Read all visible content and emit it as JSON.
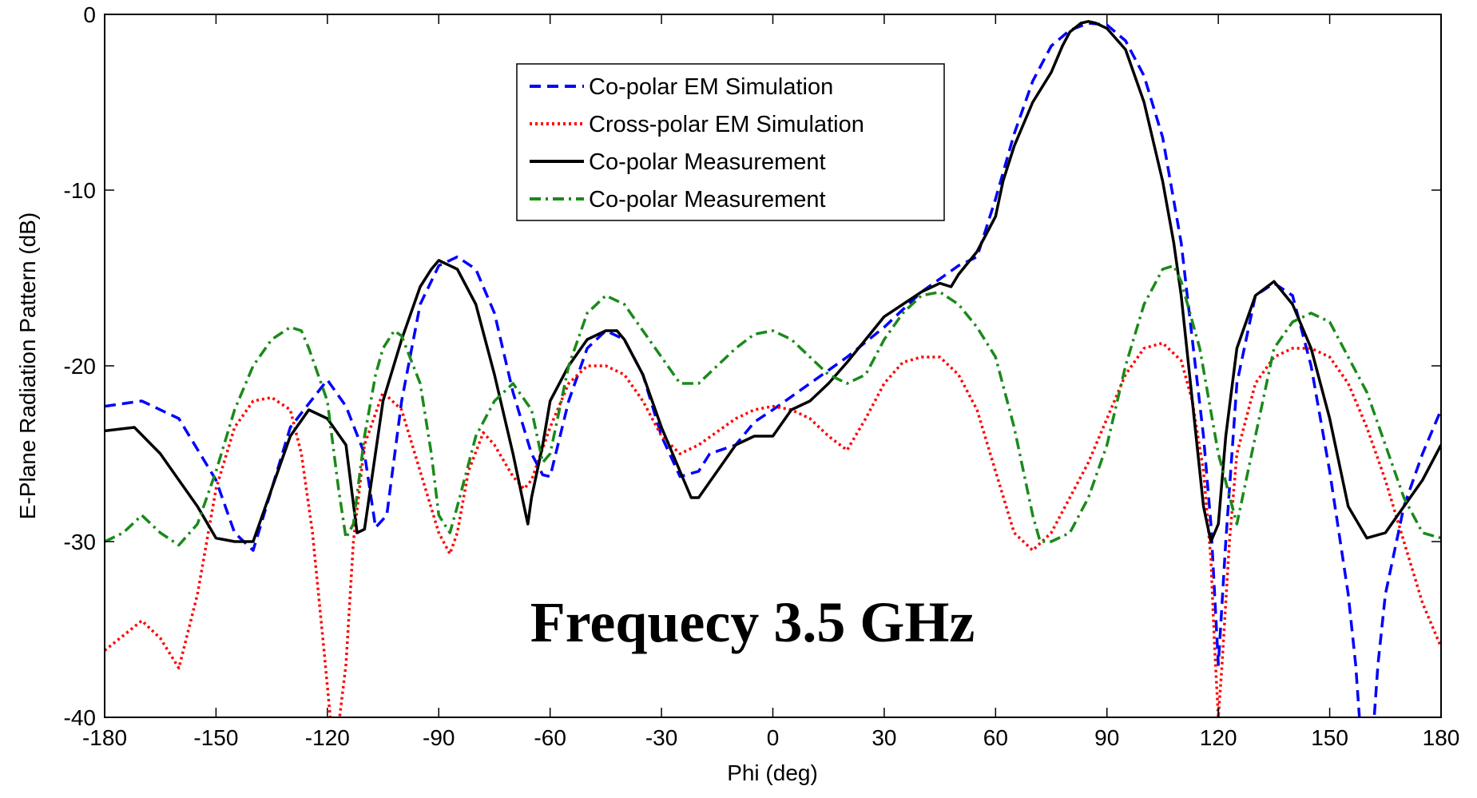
{
  "chart_data": {
    "type": "line",
    "title": "",
    "xlabel": "Phi (deg)",
    "ylabel": "E-Plane Radiation Pattern (dB)",
    "xlim": [
      -180,
      180
    ],
    "ylim": [
      -40,
      0
    ],
    "xticks": [
      "-180",
      "-150",
      "-120",
      "-90",
      "-60",
      "-30",
      "0",
      "30",
      "60",
      "90",
      "120",
      "150",
      "180"
    ],
    "yticks": [
      "0",
      "-10",
      "-20",
      "-30",
      "-40"
    ],
    "grid": false,
    "legend_position": "top-center",
    "annotation": "Frequecy 3.5 GHz",
    "series": [
      {
        "name": "Co-polar EM Simulation",
        "color": "#0000ff",
        "style": "dashed",
        "x": [
          -180,
          -170,
          -160,
          -150,
          -145,
          -140,
          -130,
          -120,
          -115,
          -110,
          -107,
          -104,
          -100,
          -95,
          -90,
          -85,
          -80,
          -75,
          -70,
          -65,
          -62,
          -60,
          -55,
          -50,
          -45,
          -40,
          -35,
          -30,
          -25,
          -20,
          -17,
          -10,
          -5,
          0,
          10,
          20,
          30,
          40,
          50,
          55,
          60,
          65,
          70,
          75,
          80,
          85,
          90,
          95,
          100,
          105,
          110,
          113,
          116,
          118,
          120,
          122,
          125,
          130,
          135,
          140,
          145,
          150,
          155,
          157,
          158,
          160,
          162,
          163,
          165,
          170,
          175,
          180
        ],
        "y": [
          -22.3,
          -22,
          -23,
          -26.5,
          -29.5,
          -30.5,
          -23.5,
          -20.8,
          -22.3,
          -25,
          -29.2,
          -28.5,
          -22,
          -16.5,
          -14.3,
          -13.8,
          -14.5,
          -17,
          -21.5,
          -25,
          -26.2,
          -26.3,
          -22,
          -19,
          -18,
          -18.5,
          -20.5,
          -24,
          -26.3,
          -26,
          -25,
          -24.5,
          -23.2,
          -22.5,
          -21,
          -19.5,
          -17.8,
          -15.8,
          -14.3,
          -13.8,
          -10.5,
          -6.8,
          -3.8,
          -1.8,
          -0.9,
          -0.5,
          -0.6,
          -1.5,
          -3.5,
          -7,
          -13,
          -18.5,
          -24,
          -29,
          -37,
          -30,
          -21,
          -16,
          -15.3,
          -16,
          -20,
          -26,
          -33,
          -37,
          -40,
          -40.5,
          -40,
          -37,
          -33,
          -28,
          -25,
          -22.5
        ]
      },
      {
        "name": "Cross-polar EM Simulation",
        "color": "#ff0000",
        "style": "dotted",
        "x": [
          -180,
          -170,
          -165,
          -160,
          -155,
          -150,
          -145,
          -140,
          -135,
          -130,
          -127,
          -124,
          -121,
          -119,
          -117,
          -115,
          -113,
          -110,
          -105,
          -100,
          -95,
          -90,
          -87,
          -85,
          -82,
          -78,
          -75,
          -70,
          -67,
          -65,
          -60,
          -55,
          -50,
          -45,
          -40,
          -35,
          -30,
          -25,
          -20,
          -10,
          -5,
          0,
          5,
          10,
          15,
          20,
          25,
          30,
          35,
          40,
          45,
          50,
          55,
          60,
          65,
          70,
          75,
          80,
          85,
          90,
          95,
          100,
          105,
          110,
          113,
          116,
          118,
          119,
          120,
          121,
          123,
          125,
          130,
          135,
          140,
          145,
          150,
          155,
          160,
          165,
          170,
          175,
          180
        ],
        "y": [
          -36.2,
          -34.5,
          -35.5,
          -37.2,
          -33,
          -27,
          -23.5,
          -22,
          -21.8,
          -22.5,
          -25,
          -29.5,
          -36,
          -40.5,
          -40.5,
          -37,
          -30,
          -24.5,
          -21.5,
          -22.5,
          -26,
          -29.5,
          -30.7,
          -29.5,
          -26,
          -23.8,
          -24.5,
          -26.3,
          -27,
          -26.5,
          -23.5,
          -21,
          -20,
          -20,
          -20.5,
          -22,
          -24,
          -25,
          -24.5,
          -23,
          -22.5,
          -22.3,
          -22.5,
          -23,
          -24,
          -24.8,
          -23,
          -21,
          -19.8,
          -19.5,
          -19.5,
          -20.5,
          -22.5,
          -26,
          -29.5,
          -30.5,
          -29.5,
          -27.5,
          -25.5,
          -23,
          -20.5,
          -19,
          -18.7,
          -19.7,
          -22,
          -26,
          -31,
          -36,
          -40,
          -37,
          -30,
          -25,
          -21,
          -19.5,
          -19,
          -19,
          -19.5,
          -21,
          -23.5,
          -26.5,
          -30,
          -33.5,
          -36
        ]
      },
      {
        "name": "Co-polar Measurement",
        "color": "#000000",
        "style": "solid",
        "x": [
          -180,
          -172,
          -165,
          -160,
          -155,
          -150,
          -145,
          -140,
          -135,
          -130,
          -125,
          -120,
          -115,
          -112,
          -110,
          -105,
          -100,
          -95,
          -92,
          -90,
          -87,
          -85,
          -80,
          -75,
          -70,
          -67,
          -66,
          -65,
          -62,
          -60,
          -55,
          -50,
          -45,
          -42,
          -40,
          -35,
          -30,
          -25,
          -22,
          -20,
          -15,
          -10,
          -5,
          0,
          5,
          10,
          15,
          20,
          25,
          30,
          35,
          40,
          45,
          48,
          50,
          55,
          60,
          62,
          65,
          70,
          75,
          78,
          80,
          83,
          85,
          87,
          90,
          95,
          100,
          105,
          108,
          110,
          112,
          114,
          116,
          118,
          120,
          122,
          125,
          130,
          135,
          140,
          145,
          150,
          155,
          160,
          165,
          170,
          175,
          180
        ],
        "y": [
          -23.7,
          -23.5,
          -25,
          -26.5,
          -28,
          -29.8,
          -30,
          -30,
          -27,
          -24,
          -22.5,
          -23,
          -24.5,
          -29.5,
          -29.3,
          -22,
          -18.5,
          -15.5,
          -14.5,
          -14,
          -14.3,
          -14.5,
          -16.5,
          -20.5,
          -25,
          -28,
          -29,
          -27.5,
          -24.5,
          -22,
          -20,
          -18.5,
          -18,
          -18,
          -18.5,
          -20.5,
          -23.5,
          -26,
          -27.5,
          -27.5,
          -26,
          -24.5,
          -24,
          -24,
          -22.5,
          -22,
          -21,
          -19.8,
          -18.5,
          -17.2,
          -16.5,
          -15.8,
          -15.3,
          -15.5,
          -14.8,
          -13.5,
          -11.5,
          -9.5,
          -7.5,
          -5,
          -3.3,
          -1.8,
          -1,
          -0.5,
          -0.4,
          -0.5,
          -0.8,
          -2,
          -5,
          -9.5,
          -13,
          -16,
          -20,
          -24,
          -28,
          -30,
          -29,
          -24,
          -19,
          -16,
          -15.2,
          -16.5,
          -19,
          -23,
          -28,
          -29.8,
          -29.5,
          -28,
          -26.5,
          -24.5
        ]
      },
      {
        "name": "Co-polar Measurement",
        "color": "#1a8a1a",
        "style": "dashdot",
        "x": [
          -180,
          -175,
          -170,
          -165,
          -160,
          -155,
          -150,
          -145,
          -140,
          -135,
          -130,
          -127,
          -125,
          -120,
          -117,
          -115,
          -113,
          -110,
          -107,
          -105,
          -102,
          -100,
          -95,
          -92,
          -90,
          -87,
          -85,
          -80,
          -75,
          -70,
          -65,
          -62,
          -60,
          -55,
          -50,
          -45,
          -40,
          -35,
          -30,
          -25,
          -20,
          -15,
          -10,
          -5,
          0,
          5,
          10,
          15,
          20,
          25,
          30,
          35,
          40,
          45,
          50,
          55,
          60,
          65,
          70,
          72,
          75,
          80,
          85,
          90,
          95,
          100,
          105,
          108,
          110,
          115,
          120,
          125,
          130,
          135,
          140,
          145,
          150,
          155,
          160,
          165,
          170,
          175,
          180
        ],
        "y": [
          -30,
          -29.5,
          -28.5,
          -29.5,
          -30.2,
          -29,
          -26,
          -22.5,
          -20,
          -18.5,
          -17.8,
          -18,
          -19,
          -22,
          -27,
          -29.8,
          -29,
          -24,
          -20.5,
          -19,
          -18,
          -18.3,
          -21,
          -25,
          -28.5,
          -29.5,
          -28,
          -24,
          -22,
          -21,
          -22.5,
          -25.5,
          -25,
          -20,
          -17,
          -16,
          -16.5,
          -18,
          -19.5,
          -21,
          -21,
          -20,
          -19,
          -18.2,
          -18,
          -18.5,
          -19.5,
          -20.5,
          -21,
          -20.5,
          -18.5,
          -17,
          -16,
          -15.8,
          -16.5,
          -17.8,
          -19.5,
          -23.5,
          -28.5,
          -30,
          -30,
          -29.5,
          -27.5,
          -24.5,
          -20,
          -16.5,
          -14.5,
          -14.3,
          -15.2,
          -19,
          -25,
          -29,
          -24,
          -19,
          -17.5,
          -17,
          -17.5,
          -19.5,
          -21.5,
          -24.5,
          -27.5,
          -29.5,
          -29.8
        ]
      }
    ]
  }
}
